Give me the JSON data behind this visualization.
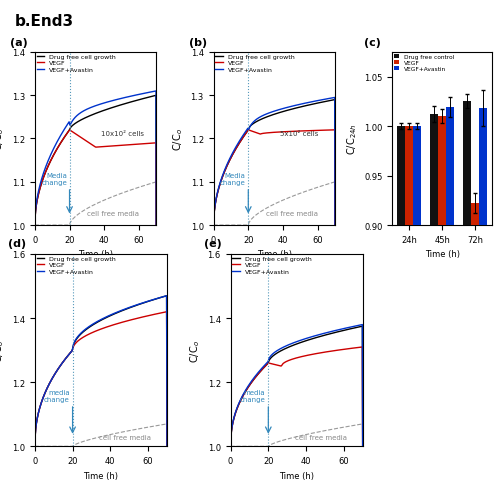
{
  "title": "b.End3",
  "panels_ab_ylim": [
    1.0,
    1.4
  ],
  "panels_de_ylim": [
    1.0,
    1.6
  ],
  "panel_c_ylim": [
    0.9,
    1.075
  ],
  "legend_lines": [
    "Drug free cell growth",
    "VEGF",
    "VEGF+Avastin"
  ],
  "legend_bars": [
    "Drug free control",
    "VEGF",
    "VEGF+Avastin"
  ],
  "colors_line": [
    "#000000",
    "#cc0000",
    "#0033cc"
  ],
  "bar_colors": [
    "#111111",
    "#cc2200",
    "#0033cc"
  ],
  "bar_data": {
    "24h": [
      1.0,
      1.0,
      1.0
    ],
    "45h": [
      1.012,
      1.01,
      1.019
    ],
    "72h": [
      1.025,
      0.922,
      1.018
    ]
  },
  "bar_errors": {
    "24h": [
      0.003,
      0.003,
      0.003
    ],
    "45h": [
      0.008,
      0.007,
      0.01
    ],
    "72h": [
      0.007,
      0.01,
      0.018
    ]
  },
  "cell_free_label": "cell free media",
  "media_change_label": "Media\nchange",
  "media_change_label_de": "media\nchange",
  "cells_label_a": "10x10² cells",
  "cells_label_b": "5x10² cells",
  "t_change_ab": 20,
  "t_change_de": 20
}
